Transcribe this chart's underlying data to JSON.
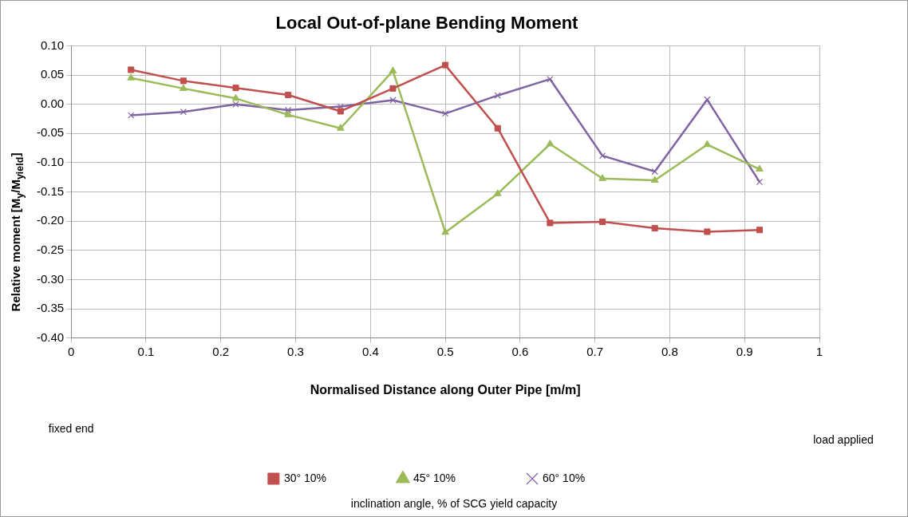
{
  "chart_data": {
    "type": "line",
    "title": "Local Out-of-plane Bending Moment",
    "xlabel": "Normalised Distance along Outer Pipe [m/m]",
    "ylabel": "Relative moment [M$_{y}$/M$_{yield}$]",
    "legend_title": "inclination angle, % of SCG yield capacity",
    "annotations": [
      "fixed end",
      "load applied"
    ],
    "x": [
      0.08,
      0.15,
      0.22,
      0.29,
      0.36,
      0.43,
      0.5,
      0.57,
      0.64,
      0.71,
      0.78,
      0.85,
      0.92
    ],
    "series": [
      {
        "name": "30° 10%",
        "color": "#c0504d",
        "marker": "square",
        "values": [
          0.059,
          0.04,
          0.028,
          0.016,
          -0.012,
          0.027,
          0.067,
          -0.041,
          -0.203,
          -0.201,
          -0.212,
          -0.218,
          -0.215
        ]
      },
      {
        "name": "45° 10%",
        "color": "#9bbb59",
        "marker": "triangle",
        "values": [
          0.045,
          0.027,
          0.01,
          -0.018,
          -0.041,
          0.057,
          -0.219,
          -0.153,
          -0.068,
          -0.127,
          -0.13,
          -0.069,
          -0.111
        ]
      },
      {
        "name": "60° 10%",
        "color": "#8064a2",
        "marker": "cross",
        "values": [
          -0.019,
          -0.013,
          0.0,
          -0.01,
          -0.004,
          0.007,
          -0.016,
          0.015,
          0.043,
          -0.088,
          -0.115,
          0.008,
          -0.133
        ]
      }
    ],
    "xlim": [
      0,
      1
    ],
    "xticks": [
      0,
      0.1,
      0.2,
      0.3,
      0.4,
      0.5,
      0.6,
      0.7,
      0.8,
      0.9,
      1
    ],
    "ylim": [
      -0.4,
      0.1
    ],
    "yticks": [
      {
        "value": -0.4,
        "label": "-0.40"
      },
      {
        "value": -0.35,
        "label": "-0.35"
      },
      {
        "value": -0.3,
        "label": "-0.30"
      },
      {
        "value": -0.25,
        "label": "-0.25"
      },
      {
        "value": -0.2,
        "label": "-0.20"
      },
      {
        "value": -0.15,
        "label": "-0.15"
      },
      {
        "value": -0.1,
        "label": "-0.10"
      },
      {
        "value": -0.05,
        "label": "-0.05"
      },
      {
        "value": 0,
        "label": "0.00"
      },
      {
        "value": 0.05,
        "label": "0.05"
      },
      {
        "value": 0.1,
        "label": "0.10"
      }
    ],
    "grid": true,
    "legend": "bottom",
    "line_style": "solid"
  }
}
